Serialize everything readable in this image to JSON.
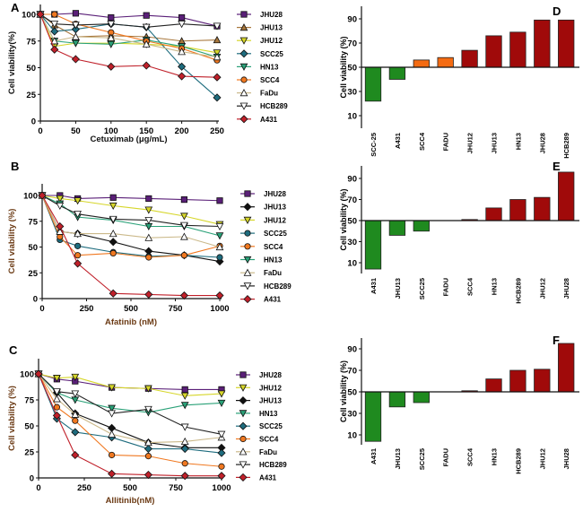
{
  "colors": {
    "JHU28": "#5a1f78",
    "JHU13": "#a8773c",
    "JHU13_bc": "#111111",
    "JHU12": "#d6d62a",
    "SCC25": "#1e6c7e",
    "HN13": "#2aa178",
    "SCC4": "#f07820",
    "FaDu": "#d9c9a0",
    "HCB289": "#222222",
    "A431": "#c0202a",
    "bar_green": "#1f8a1f",
    "bar_orange": "#f46b12",
    "bar_red": "#a00a0a"
  },
  "chart_data": [
    {
      "panel": "A",
      "type": "line",
      "xlabel": "Cetuximab (μg/mL)",
      "ylabel": "Cell viability(%)",
      "xticks": [
        0,
        50,
        100,
        150,
        200,
        250
      ],
      "yticks": [
        0,
        25,
        50,
        75,
        100
      ],
      "xlim": [
        0,
        250
      ],
      "ylim": [
        0,
        100
      ],
      "legend": "right",
      "x": [
        0,
        20,
        50,
        100,
        150,
        200,
        250
      ],
      "series": [
        {
          "name": "JHU28",
          "marker": "square",
          "color": "#5a1f78",
          "values": [
            100,
            100,
            101,
            97,
            99,
            97,
            89
          ]
        },
        {
          "name": "JHU13",
          "marker": "tri-up",
          "color": "#a8773c",
          "values": [
            100,
            90,
            79,
            80,
            79,
            75,
            76
          ]
        },
        {
          "name": "JHU12",
          "marker": "tri-down",
          "color": "#d6d62a",
          "values": [
            100,
            70,
            73,
            73,
            72,
            70,
            64
          ]
        },
        {
          "name": "SCC25",
          "marker": "diamond",
          "color": "#1e6c7e",
          "values": [
            100,
            84,
            86,
            91,
            88,
            51,
            22
          ]
        },
        {
          "name": "HN13",
          "marker": "tri-down",
          "color": "#2aa178",
          "values": [
            100,
            75,
            73,
            72,
            76,
            70,
            60
          ]
        },
        {
          "name": "SCC4",
          "marker": "circle",
          "color": "#f07820",
          "values": [
            100,
            100,
            91,
            83,
            75,
            68,
            57
          ]
        },
        {
          "name": "FaDu",
          "marker": "tri-up-open",
          "color": "#d9c9a0",
          "values": [
            100,
            75,
            79,
            78,
            72,
            65,
            60
          ]
        },
        {
          "name": "HCB289",
          "marker": "tri-down-open",
          "color": "#222222",
          "values": [
            100,
            91,
            90,
            91,
            88,
            91,
            89
          ]
        },
        {
          "name": "A431",
          "marker": "diamond",
          "color": "#c0202a",
          "values": [
            100,
            67,
            58,
            51,
            52,
            42,
            41
          ]
        }
      ]
    },
    {
      "panel": "B",
      "type": "line",
      "xlabel": "Afatinib (nM)",
      "ylabel": "Cell viability (%)",
      "xticks": [
        0,
        250,
        500,
        750,
        1000
      ],
      "yticks": [
        0,
        25,
        50,
        75,
        100
      ],
      "xlim": [
        0,
        1000
      ],
      "ylim": [
        0,
        100
      ],
      "legend": "right",
      "x": [
        0,
        100,
        200,
        400,
        600,
        800,
        1000
      ],
      "series": [
        {
          "name": "JHU28",
          "marker": "square",
          "color": "#5a1f78",
          "values": [
            100,
            100,
            97,
            98,
            97,
            96,
            95
          ]
        },
        {
          "name": "JHU13",
          "marker": "diamond",
          "color": "#111111",
          "values": [
            100,
            65,
            63,
            55,
            46,
            42,
            36
          ]
        },
        {
          "name": "JHU12",
          "marker": "tri-down",
          "color": "#d6d62a",
          "values": [
            100,
            97,
            95,
            90,
            86,
            80,
            72
          ]
        },
        {
          "name": "SCC25",
          "marker": "circle",
          "color": "#1e6c7e",
          "values": [
            100,
            57,
            51,
            45,
            41,
            42,
            40
          ]
        },
        {
          "name": "SCC4",
          "marker": "circle",
          "color": "#f07820",
          "values": [
            100,
            60,
            42,
            44,
            40,
            42,
            51
          ]
        },
        {
          "name": "HN13",
          "marker": "tri-down",
          "color": "#2aa178",
          "values": [
            100,
            92,
            79,
            76,
            70,
            70,
            61
          ]
        },
        {
          "name": "FaDu",
          "marker": "tri-up-open",
          "color": "#d9c9a0",
          "values": [
            100,
            65,
            63,
            63,
            59,
            60,
            50
          ]
        },
        {
          "name": "HCB289",
          "marker": "tri-down-open",
          "color": "#222222",
          "values": [
            100,
            90,
            82,
            77,
            76,
            71,
            70
          ]
        },
        {
          "name": "A431",
          "marker": "diamond",
          "color": "#c0202a",
          "values": [
            100,
            70,
            34,
            5,
            4,
            3,
            3
          ]
        }
      ]
    },
    {
      "panel": "C",
      "type": "line",
      "xlabel": "Allitinib(nM)",
      "ylabel": "Cell viability (%)",
      "xticks": [
        0,
        250,
        500,
        750,
        1000
      ],
      "yticks": [
        0,
        25,
        50,
        75,
        100
      ],
      "xlim": [
        0,
        1000
      ],
      "ylim": [
        0,
        100
      ],
      "legend": "right",
      "x": [
        0,
        100,
        200,
        400,
        600,
        800,
        1000
      ],
      "series": [
        {
          "name": "JHU28",
          "marker": "square",
          "color": "#5a1f78",
          "values": [
            100,
            95,
            93,
            87,
            86,
            85,
            85
          ]
        },
        {
          "name": "JHU12",
          "marker": "tri-down",
          "color": "#d6d62a",
          "values": [
            100,
            96,
            97,
            87,
            86,
            79,
            81
          ]
        },
        {
          "name": "JHU13",
          "marker": "diamond",
          "color": "#111111",
          "values": [
            100,
            82,
            62,
            48,
            34,
            29,
            29
          ]
        },
        {
          "name": "HN13",
          "marker": "tri-down",
          "color": "#2aa178",
          "values": [
            100,
            82,
            75,
            67,
            63,
            70,
            72
          ]
        },
        {
          "name": "SCC25",
          "marker": "diamond",
          "color": "#1e6c7e",
          "values": [
            100,
            57,
            44,
            39,
            28,
            28,
            24
          ]
        },
        {
          "name": "SCC4",
          "marker": "circle",
          "color": "#f07820",
          "values": [
            100,
            68,
            55,
            22,
            21,
            14,
            11
          ]
        },
        {
          "name": "FaDu",
          "marker": "tri-up-open",
          "color": "#d9c9a0",
          "values": [
            100,
            76,
            61,
            42,
            34,
            35,
            39
          ]
        },
        {
          "name": "HCB289",
          "marker": "tri-down-open",
          "color": "#222222",
          "values": [
            100,
            83,
            81,
            62,
            66,
            49,
            42
          ]
        },
        {
          "name": "A431",
          "marker": "diamond",
          "color": "#c0202a",
          "values": [
            100,
            60,
            22,
            4,
            3,
            2,
            2
          ]
        }
      ]
    },
    {
      "panel": "D",
      "type": "bar",
      "ylabel": "Cell viability (%)",
      "baseline": 50,
      "yticks": [
        10,
        30,
        50,
        70,
        90
      ],
      "ylim": [
        0,
        100
      ],
      "categories": [
        "SCC-25",
        "A431",
        "SCC4",
        "FADU",
        "JHU12",
        "JHU13",
        "HN13",
        "JHU28",
        "HCB289"
      ],
      "values": [
        22,
        40,
        56,
        58,
        64,
        76,
        79,
        89,
        89
      ],
      "bar_colors": [
        "green",
        "green",
        "orange",
        "orange",
        "red",
        "red",
        "red",
        "red",
        "red"
      ]
    },
    {
      "panel": "E",
      "type": "bar",
      "ylabel": "Cell viability (%)",
      "baseline": 50,
      "yticks": [
        10,
        30,
        50,
        70,
        90
      ],
      "ylim": [
        0,
        100
      ],
      "categories": [
        "A431",
        "JHU13",
        "SCC25",
        "FADU",
        "SCC4",
        "HN13",
        "HCB289",
        "JHU12",
        "JHU28"
      ],
      "values": [
        4,
        36,
        40,
        50,
        51,
        62,
        70,
        72,
        96
      ],
      "bar_colors": [
        "green",
        "green",
        "green",
        "green",
        "red",
        "red",
        "red",
        "red",
        "red"
      ]
    },
    {
      "panel": "F",
      "type": "bar",
      "ylabel": "Cell viability (%)",
      "baseline": 50,
      "yticks": [
        10,
        30,
        50,
        70,
        90
      ],
      "ylim": [
        0,
        100
      ],
      "categories": [
        "A431",
        "JHU13",
        "SCC25",
        "FADU",
        "SCC4",
        "HN13",
        "HCB289",
        "JHU12",
        "JHU28"
      ],
      "values": [
        4,
        36,
        40,
        50,
        51,
        62,
        70,
        71,
        95
      ],
      "bar_colors": [
        "green",
        "green",
        "green",
        "green",
        "red",
        "red",
        "red",
        "red",
        "red"
      ]
    }
  ]
}
